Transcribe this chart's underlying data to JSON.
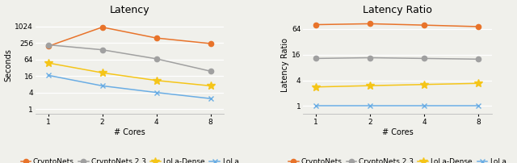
{
  "cores": [
    1,
    2,
    4,
    8
  ],
  "latency": {
    "CryptoNets": [
      195,
      970,
      390,
      245
    ],
    "CryptoNets 2.3": [
      220,
      145,
      68,
      24
    ],
    "LoLa-Dense": [
      48,
      21,
      11,
      7
    ],
    "LoLa": [
      17,
      7,
      4,
      2.4
    ]
  },
  "ratio": {
    "CryptoNets": [
      80,
      84,
      78,
      72
    ],
    "CryptoNets 2.3": [
      13,
      13.5,
      13,
      12.5
    ],
    "LoLa-Dense": [
      2.8,
      3.0,
      3.2,
      3.4
    ],
    "LoLa": [
      1.0,
      1.0,
      1.0,
      1.0
    ]
  },
  "colors": {
    "CryptoNets": "#E8732A",
    "CryptoNets 2.3": "#A0A0A0",
    "LoLa-Dense": "#F5C518",
    "LoLa": "#6AADE4"
  },
  "markers": {
    "CryptoNets": "o",
    "CryptoNets 2.3": "o",
    "LoLa-Dense": "*",
    "LoLa": "x"
  },
  "title_left": "Latency",
  "title_right": "Latency Ratio",
  "xlabel": "# Cores",
  "ylabel_left": "Seconds",
  "ylabel_right": "Latency Ratio",
  "xticks": [
    1,
    2,
    4,
    8
  ],
  "yticks_left": [
    1,
    4,
    16,
    64,
    256,
    1024
  ],
  "yticks_right": [
    1,
    4,
    16,
    64
  ],
  "background_color": "#f0f0eb",
  "grid_color": "#ffffff",
  "title_fontsize": 9,
  "label_fontsize": 7,
  "tick_fontsize": 6.5,
  "legend_fontsize": 6.5
}
